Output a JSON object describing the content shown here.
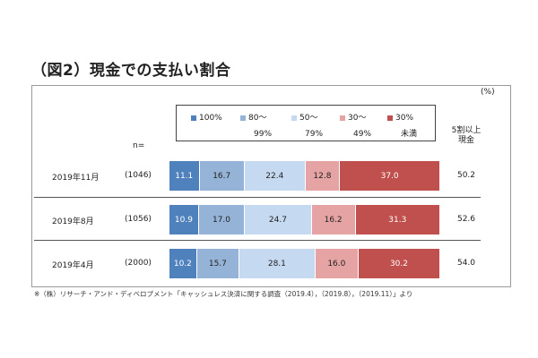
{
  "title": "（図2）現金での支払い割合",
  "unit": "(%)",
  "n_label": "n=",
  "legend": [
    {
      "line1": "100%",
      "line2": "",
      "color": "#4f81bd"
    },
    {
      "line1": "80～",
      "line2": "99%",
      "color": "#95b3d7"
    },
    {
      "line1": "50～",
      "line2": "79%",
      "color": "#c5d9f1"
    },
    {
      "line1": "30～",
      "line2": "49%",
      "color": "#e6a3a3"
    },
    {
      "line1": "30%",
      "line2": "未満",
      "color": "#c0504d"
    }
  ],
  "share_header": "5割以上\n現金",
  "footnote": "※（株）リサーチ・アンド・ディベロプメント「キャッシュレス決済に関する調査（2019.4），（2019.8），（2019.11）」より",
  "chart_data": {
    "type": "bar",
    "stacked": true,
    "orientation": "horizontal",
    "title": "（図2）現金での支払い割合",
    "categories": [
      "2019年11月",
      "2019年8月",
      "2019年4月"
    ],
    "n": [
      "(1046)",
      "(1056)",
      "(2000)"
    ],
    "series": [
      {
        "name": "100%",
        "values": [
          11.1,
          10.9,
          10.2
        ]
      },
      {
        "name": "80～99%",
        "values": [
          16.7,
          17.0,
          15.7
        ]
      },
      {
        "name": "50～79%",
        "values": [
          22.4,
          24.7,
          28.1
        ]
      },
      {
        "name": "30～49%",
        "values": [
          12.8,
          16.2,
          16.0
        ]
      },
      {
        "name": "30%未満",
        "values": [
          37.0,
          31.3,
          30.2
        ]
      }
    ],
    "share_50_plus": [
      50.2,
      52.6,
      54.0
    ],
    "xlim": [
      0,
      100
    ]
  }
}
